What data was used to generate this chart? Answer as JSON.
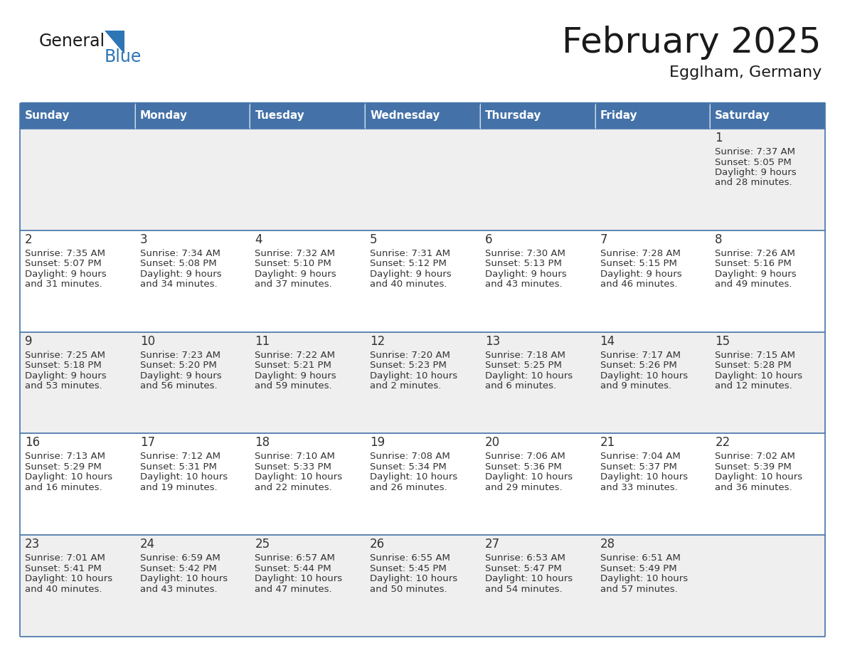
{
  "title": "February 2025",
  "subtitle": "Egglham, Germany",
  "days_of_week": [
    "Sunday",
    "Monday",
    "Tuesday",
    "Wednesday",
    "Thursday",
    "Friday",
    "Saturday"
  ],
  "header_bg": "#4472A8",
  "header_text": "#FFFFFF",
  "cell_bg_light": "#EFEFEF",
  "cell_bg_white": "#FFFFFF",
  "border_color": "#4472A8",
  "day_number_color": "#333333",
  "info_text_color": "#333333",
  "title_color": "#1a1a1a",
  "logo_general_color": "#1a1a1a",
  "logo_blue_color": "#2E75B6",
  "calendar_data": [
    [
      null,
      null,
      null,
      null,
      null,
      null,
      {
        "day": 1,
        "sunrise": "7:37 AM",
        "sunset": "5:05 PM",
        "daylight_line1": "9 hours",
        "daylight_line2": "and 28 minutes."
      }
    ],
    [
      {
        "day": 2,
        "sunrise": "7:35 AM",
        "sunset": "5:07 PM",
        "daylight_line1": "9 hours",
        "daylight_line2": "and 31 minutes."
      },
      {
        "day": 3,
        "sunrise": "7:34 AM",
        "sunset": "5:08 PM",
        "daylight_line1": "9 hours",
        "daylight_line2": "and 34 minutes."
      },
      {
        "day": 4,
        "sunrise": "7:32 AM",
        "sunset": "5:10 PM",
        "daylight_line1": "9 hours",
        "daylight_line2": "and 37 minutes."
      },
      {
        "day": 5,
        "sunrise": "7:31 AM",
        "sunset": "5:12 PM",
        "daylight_line1": "9 hours",
        "daylight_line2": "and 40 minutes."
      },
      {
        "day": 6,
        "sunrise": "7:30 AM",
        "sunset": "5:13 PM",
        "daylight_line1": "9 hours",
        "daylight_line2": "and 43 minutes."
      },
      {
        "day": 7,
        "sunrise": "7:28 AM",
        "sunset": "5:15 PM",
        "daylight_line1": "9 hours",
        "daylight_line2": "and 46 minutes."
      },
      {
        "day": 8,
        "sunrise": "7:26 AM",
        "sunset": "5:16 PM",
        "daylight_line1": "9 hours",
        "daylight_line2": "and 49 minutes."
      }
    ],
    [
      {
        "day": 9,
        "sunrise": "7:25 AM",
        "sunset": "5:18 PM",
        "daylight_line1": "9 hours",
        "daylight_line2": "and 53 minutes."
      },
      {
        "day": 10,
        "sunrise": "7:23 AM",
        "sunset": "5:20 PM",
        "daylight_line1": "9 hours",
        "daylight_line2": "and 56 minutes."
      },
      {
        "day": 11,
        "sunrise": "7:22 AM",
        "sunset": "5:21 PM",
        "daylight_line1": "9 hours",
        "daylight_line2": "and 59 minutes."
      },
      {
        "day": 12,
        "sunrise": "7:20 AM",
        "sunset": "5:23 PM",
        "daylight_line1": "10 hours",
        "daylight_line2": "and 2 minutes."
      },
      {
        "day": 13,
        "sunrise": "7:18 AM",
        "sunset": "5:25 PM",
        "daylight_line1": "10 hours",
        "daylight_line2": "and 6 minutes."
      },
      {
        "day": 14,
        "sunrise": "7:17 AM",
        "sunset": "5:26 PM",
        "daylight_line1": "10 hours",
        "daylight_line2": "and 9 minutes."
      },
      {
        "day": 15,
        "sunrise": "7:15 AM",
        "sunset": "5:28 PM",
        "daylight_line1": "10 hours",
        "daylight_line2": "and 12 minutes."
      }
    ],
    [
      {
        "day": 16,
        "sunrise": "7:13 AM",
        "sunset": "5:29 PM",
        "daylight_line1": "10 hours",
        "daylight_line2": "and 16 minutes."
      },
      {
        "day": 17,
        "sunrise": "7:12 AM",
        "sunset": "5:31 PM",
        "daylight_line1": "10 hours",
        "daylight_line2": "and 19 minutes."
      },
      {
        "day": 18,
        "sunrise": "7:10 AM",
        "sunset": "5:33 PM",
        "daylight_line1": "10 hours",
        "daylight_line2": "and 22 minutes."
      },
      {
        "day": 19,
        "sunrise": "7:08 AM",
        "sunset": "5:34 PM",
        "daylight_line1": "10 hours",
        "daylight_line2": "and 26 minutes."
      },
      {
        "day": 20,
        "sunrise": "7:06 AM",
        "sunset": "5:36 PM",
        "daylight_line1": "10 hours",
        "daylight_line2": "and 29 minutes."
      },
      {
        "day": 21,
        "sunrise": "7:04 AM",
        "sunset": "5:37 PM",
        "daylight_line1": "10 hours",
        "daylight_line2": "and 33 minutes."
      },
      {
        "day": 22,
        "sunrise": "7:02 AM",
        "sunset": "5:39 PM",
        "daylight_line1": "10 hours",
        "daylight_line2": "and 36 minutes."
      }
    ],
    [
      {
        "day": 23,
        "sunrise": "7:01 AM",
        "sunset": "5:41 PM",
        "daylight_line1": "10 hours",
        "daylight_line2": "and 40 minutes."
      },
      {
        "day": 24,
        "sunrise": "6:59 AM",
        "sunset": "5:42 PM",
        "daylight_line1": "10 hours",
        "daylight_line2": "and 43 minutes."
      },
      {
        "day": 25,
        "sunrise": "6:57 AM",
        "sunset": "5:44 PM",
        "daylight_line1": "10 hours",
        "daylight_line2": "and 47 minutes."
      },
      {
        "day": 26,
        "sunrise": "6:55 AM",
        "sunset": "5:45 PM",
        "daylight_line1": "10 hours",
        "daylight_line2": "and 50 minutes."
      },
      {
        "day": 27,
        "sunrise": "6:53 AM",
        "sunset": "5:47 PM",
        "daylight_line1": "10 hours",
        "daylight_line2": "and 54 minutes."
      },
      {
        "day": 28,
        "sunrise": "6:51 AM",
        "sunset": "5:49 PM",
        "daylight_line1": "10 hours",
        "daylight_line2": "and 57 minutes."
      },
      null
    ]
  ],
  "row_bg": [
    "#EFEFEF",
    "#FFFFFF",
    "#EFEFEF",
    "#FFFFFF",
    "#EFEFEF"
  ]
}
